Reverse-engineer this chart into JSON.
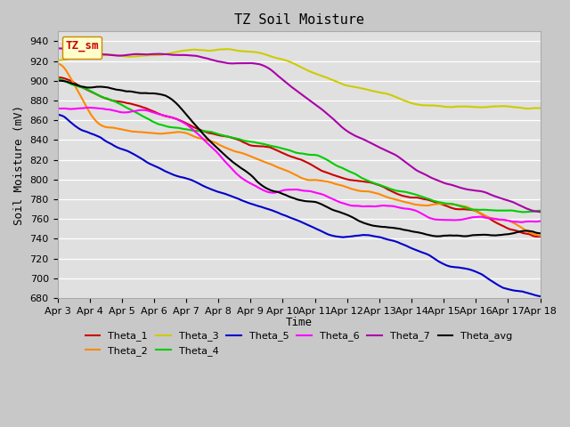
{
  "title": "TZ Soil Moisture",
  "xlabel": "Time",
  "ylabel": "Soil Moisture (mV)",
  "ylim": [
    680,
    950
  ],
  "xlim_days": [
    0,
    15
  ],
  "x_tick_labels": [
    "Apr 3",
    "Apr 4",
    "Apr 5",
    "Apr 6",
    "Apr 7",
    "Apr 8",
    "Apr 9",
    "Apr 10",
    "Apr 11",
    "Apr 12",
    "Apr 13",
    "Apr 14",
    "Apr 15",
    "Apr 16",
    "Apr 17",
    "Apr 18"
  ],
  "bg_color": "#e0e0e0",
  "legend_label": "TZ_sm",
  "series": {
    "Theta_1": {
      "color": "#cc0000",
      "lw": 1.5
    },
    "Theta_2": {
      "color": "#ff8800",
      "lw": 1.5
    },
    "Theta_3": {
      "color": "#cccc00",
      "lw": 1.5
    },
    "Theta_4": {
      "color": "#00cc00",
      "lw": 1.5
    },
    "Theta_5": {
      "color": "#0000cc",
      "lw": 1.5
    },
    "Theta_6": {
      "color": "#ff00ff",
      "lw": 1.5
    },
    "Theta_7": {
      "color": "#aa00aa",
      "lw": 1.5
    },
    "Theta_avg": {
      "color": "#000000",
      "lw": 1.5
    }
  }
}
